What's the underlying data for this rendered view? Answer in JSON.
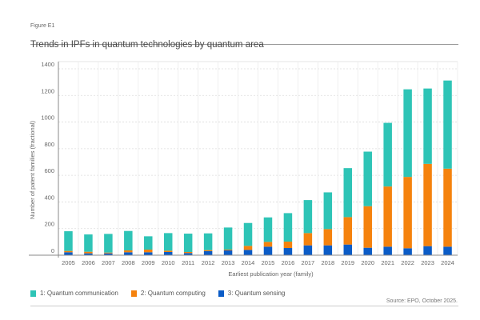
{
  "figure_label": "Figure E1",
  "chart_data": {
    "type": "bar",
    "stacked": true,
    "title": "Trends in IPFs in quantum technologies by quantum area",
    "xlabel": "Earliest publication year (family)",
    "ylabel": "Number of patent families (fractional)",
    "ylim": [
      0,
      1400
    ],
    "yticks": [
      0,
      200,
      400,
      600,
      800,
      1000,
      1200,
      1400
    ],
    "grid": true,
    "legend_position": "bottom-left",
    "categories": [
      "2005",
      "2006",
      "2007",
      "2008",
      "2009",
      "2010",
      "2011",
      "2012",
      "2013",
      "2014",
      "2015",
      "2016",
      "2017",
      "2018",
      "2019",
      "2020",
      "2021",
      "2022",
      "2023",
      "2024"
    ],
    "series": [
      {
        "name": "3: Quantum sensing",
        "color": "#0b5cc7",
        "values": [
          22,
          14,
          14,
          22,
          22,
          24,
          16,
          30,
          36,
          40,
          64,
          54,
          74,
          74,
          80,
          56,
          64,
          52,
          68,
          64
        ]
      },
      {
        "name": "2: Quantum computing",
        "color": "#f5820d",
        "values": [
          10,
          12,
          6,
          14,
          20,
          10,
          8,
          8,
          6,
          30,
          36,
          48,
          92,
          122,
          206,
          312,
          452,
          536,
          618,
          586
        ]
      },
      {
        "name": "1: Quantum communication",
        "color": "#2ec4b6",
        "values": [
          148,
          130,
          140,
          146,
          100,
          132,
          138,
          126,
          166,
          172,
          184,
          214,
          248,
          276,
          368,
          410,
          478,
          658,
          566,
          662
        ]
      }
    ],
    "legend_order": [
      2,
      1,
      0
    ]
  },
  "source": "Source: EPO, October 2025."
}
